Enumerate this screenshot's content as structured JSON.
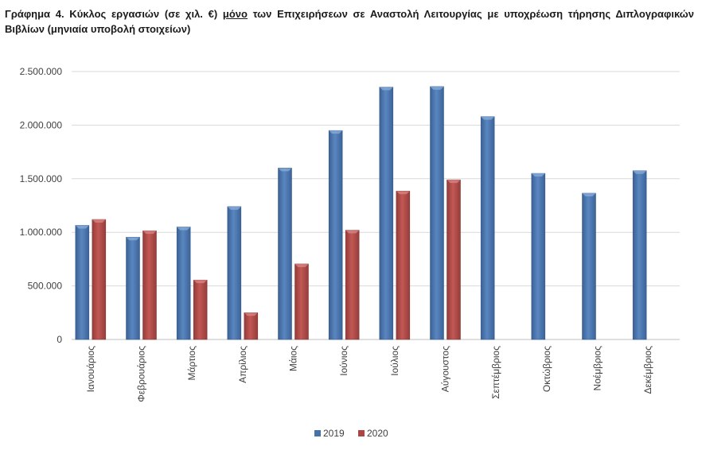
{
  "title": {
    "part1": "Γράφημα 4. Κύκλος εργασιών (σε χιλ. €) ",
    "emphasis": "μόνο",
    "part2": " των Επιχειρήσεων σε Αναστολή Λειτουργίας με υποχρέωση τήρησης Διπλογραφικών Βιβλίων (μηνιαία υποβολή στοιχείων)"
  },
  "chart_data": {
    "type": "bar",
    "categories": [
      "Ιανουάριος",
      "Φεβρουάριος",
      "Μάρτιος",
      "Απρίλιος",
      "Μάιος",
      "Ιούνιος",
      "Ιούλιος",
      "Αύγουστος",
      "Σεπτέμβριος",
      "Οκτώβριος",
      "Νοέμβριος",
      "Δεκέμβριος"
    ],
    "series": [
      {
        "name": "2019",
        "color": "#4572A7",
        "values": [
          1065000,
          955000,
          1050000,
          1240000,
          1600000,
          1950000,
          2355000,
          2360000,
          2080000,
          1550000,
          1365000,
          1575000
        ]
      },
      {
        "name": "2020",
        "color": "#AA4643",
        "values": [
          1120000,
          1015000,
          555000,
          250000,
          705000,
          1020000,
          1385000,
          1490000,
          null,
          null,
          null,
          null
        ]
      }
    ],
    "ylim": [
      0,
      2500000
    ],
    "yticks": [
      {
        "value": 0,
        "label": "0"
      },
      {
        "value": 500000,
        "label": "500.000"
      },
      {
        "value": 1000000,
        "label": "1.000.000"
      },
      {
        "value": 1500000,
        "label": "1.500.000"
      },
      {
        "value": 2000000,
        "label": "2.000.000"
      },
      {
        "value": 2500000,
        "label": "2.500.000"
      }
    ],
    "grid": true,
    "legend": "bottom"
  }
}
